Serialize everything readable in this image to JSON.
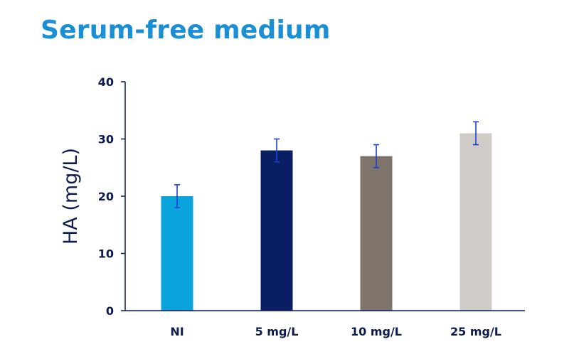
{
  "chart_data": {
    "type": "bar",
    "title": "Serum-free medium",
    "ylabel": "HA (mg/L)",
    "xlabel": "",
    "categories": [
      "NI",
      "5 mg/L",
      "10 mg/L",
      "25 mg/L"
    ],
    "values": [
      20,
      28,
      27,
      31
    ],
    "errors": [
      2,
      2,
      2,
      2
    ],
    "colors": [
      "#0aa3dc",
      "#0a1f63",
      "#7e746b",
      "#cfccc8"
    ],
    "ylim": [
      0,
      40
    ],
    "yticks": [
      0,
      10,
      20,
      30,
      40
    ],
    "grid": false,
    "axis_color": "#0d1b4d",
    "error_bar_color": "#1c3fd6",
    "title_color": "#1a8fd6"
  }
}
